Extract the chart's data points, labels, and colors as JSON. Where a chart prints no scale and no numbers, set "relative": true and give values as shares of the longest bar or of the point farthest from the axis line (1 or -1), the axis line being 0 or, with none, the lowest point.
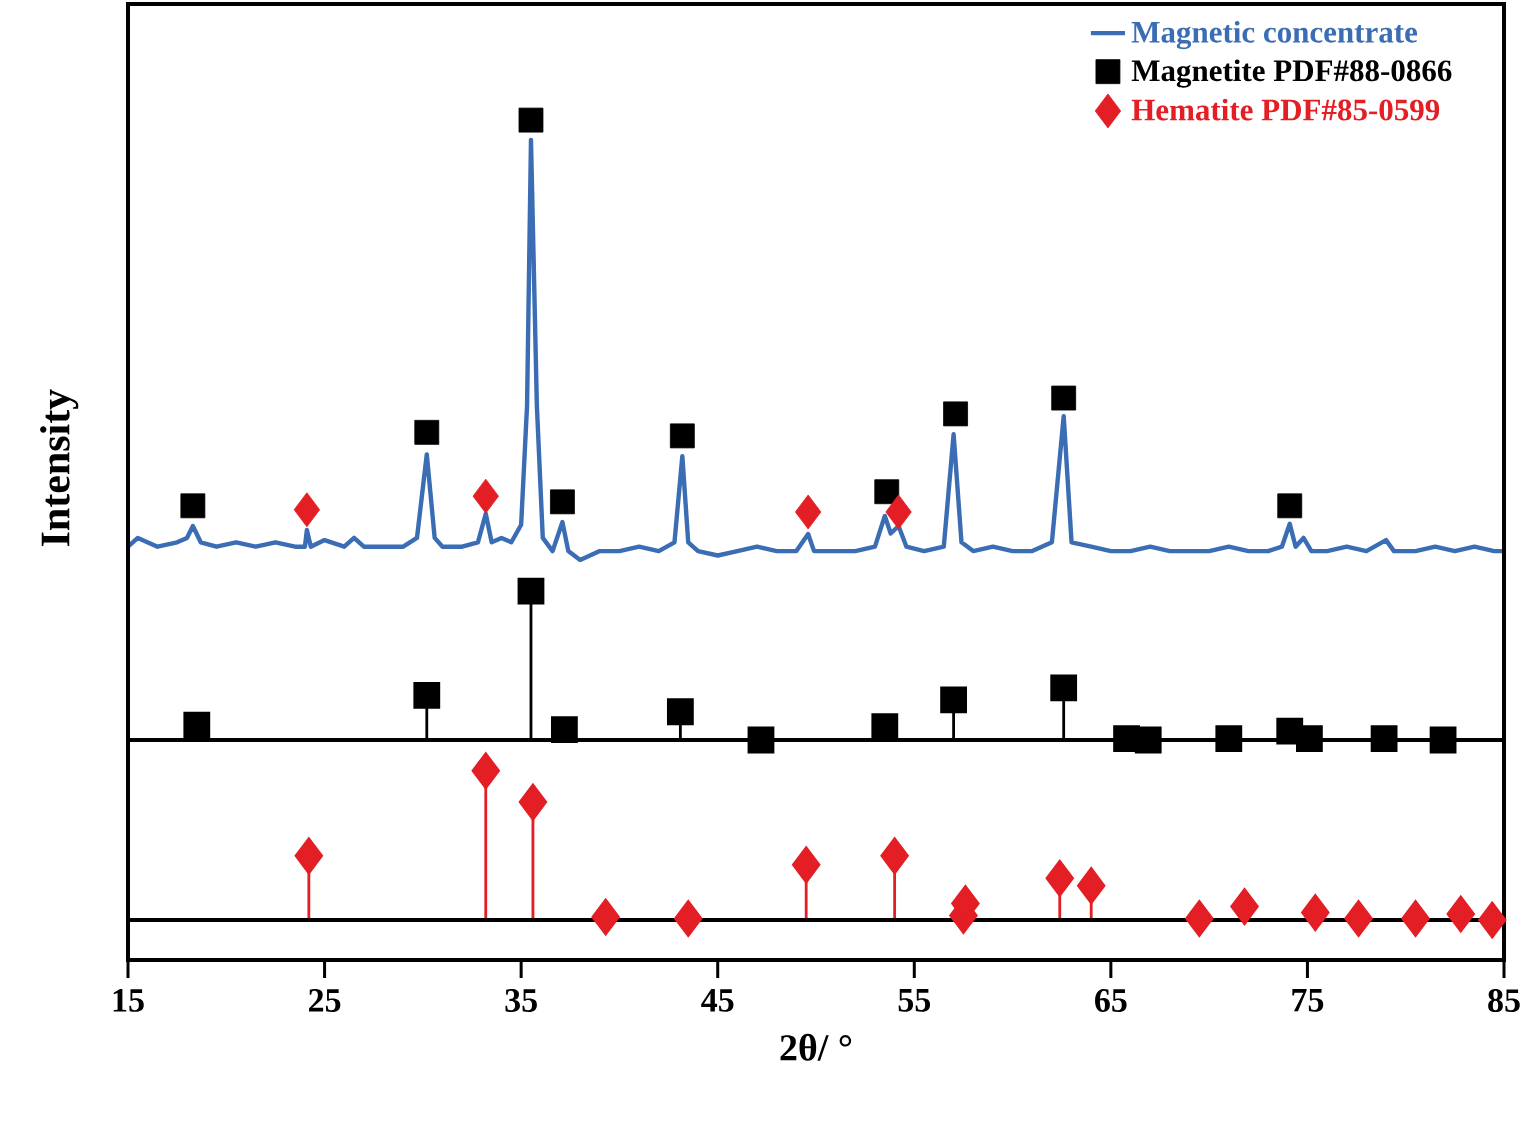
{
  "chart_data": [
    {
      "type": "line",
      "relative": true,
      "ylabel": "Intensity",
      "xlim": [
        15,
        85
      ],
      "tick_labels": false,
      "legend": "top right",
      "series": [
        {
          "name": "Magnetic concentrate",
          "type": "line",
          "color": "#3a6db4",
          "line_style": "solid",
          "marker": "none",
          "x": [
            15.0,
            15.5,
            16.5,
            17.5,
            18.0,
            18.3,
            18.7,
            19.5,
            20.5,
            21.5,
            22.5,
            23.5,
            24.0,
            24.1,
            24.3,
            25.0,
            26.0,
            26.5,
            27.0,
            28.0,
            29.0,
            29.7,
            30.2,
            30.6,
            31.0,
            32.0,
            32.8,
            33.2,
            33.5,
            34.0,
            34.5,
            35.0,
            35.3,
            35.5,
            35.8,
            36.1,
            36.6,
            37.1,
            37.4,
            38.0,
            39.0,
            40.0,
            41.0,
            42.0,
            42.8,
            43.2,
            43.5,
            44.0,
            45.0,
            46.0,
            47.0,
            48.0,
            49.0,
            49.6,
            49.9,
            51.0,
            52.0,
            53.0,
            53.5,
            53.8,
            54.2,
            54.6,
            55.5,
            56.5,
            57.0,
            57.4,
            58.0,
            59.0,
            60.0,
            61.0,
            62.0,
            62.6,
            63.0,
            64.0,
            65.0,
            66.0,
            67.0,
            68.0,
            69.0,
            70.0,
            71.0,
            72.0,
            73.0,
            73.7,
            74.1,
            74.4,
            74.8,
            75.2,
            76.0,
            77.0,
            78.0,
            79.0,
            79.4,
            80.5,
            81.5,
            82.5,
            83.5,
            84.5,
            85.0
          ],
          "values": [
            0.03,
            0.05,
            0.03,
            0.04,
            0.05,
            0.077,
            0.04,
            0.03,
            0.04,
            0.03,
            0.04,
            0.03,
            0.03,
            0.068,
            0.03,
            0.045,
            0.03,
            0.05,
            0.03,
            0.03,
            0.03,
            0.05,
            0.24,
            0.05,
            0.03,
            0.03,
            0.04,
            0.105,
            0.04,
            0.05,
            0.04,
            0.08,
            0.35,
            0.955,
            0.35,
            0.05,
            0.02,
            0.086,
            0.02,
            0.0,
            0.02,
            0.02,
            0.03,
            0.02,
            0.04,
            0.236,
            0.04,
            0.02,
            0.01,
            0.02,
            0.03,
            0.02,
            0.02,
            0.059,
            0.02,
            0.02,
            0.02,
            0.03,
            0.1,
            0.06,
            0.077,
            0.03,
            0.02,
            0.03,
            0.286,
            0.04,
            0.02,
            0.03,
            0.02,
            0.02,
            0.04,
            0.327,
            0.04,
            0.03,
            0.02,
            0.02,
            0.03,
            0.02,
            0.02,
            0.02,
            0.03,
            0.02,
            0.02,
            0.03,
            0.082,
            0.03,
            0.05,
            0.02,
            0.02,
            0.03,
            0.02,
            0.045,
            0.02,
            0.02,
            0.03,
            0.02,
            0.03,
            0.02,
            0.02
          ]
        },
        {
          "name": "Magnetite PDF#88-0866",
          "type": "scatter",
          "color": "#000000",
          "marker": "square",
          "x": [
            18.3,
            30.2,
            35.5,
            37.1,
            43.2,
            53.6,
            57.1,
            62.6,
            74.1
          ],
          "values": [
            0.123,
            0.29,
            1.0,
            0.132,
            0.282,
            0.155,
            0.332,
            0.368,
            0.123
          ]
        },
        {
          "name": "Hematite PDF#85-0599",
          "type": "scatter",
          "color": "#e31e24",
          "marker": "diamond",
          "x": [
            24.1,
            33.2,
            49.6,
            54.2
          ],
          "values": [
            0.114,
            0.145,
            0.109,
            0.109
          ]
        }
      ]
    },
    {
      "type": "lollipop",
      "relative": true,
      "xlim": [
        15,
        85
      ],
      "tick_labels": false,
      "series": [
        {
          "color": "#000000",
          "marker": "square",
          "x": [
            18.5,
            30.2,
            35.5,
            37.2,
            43.1,
            47.2,
            53.5,
            57.0,
            62.6,
            65.8,
            66.9,
            71.0,
            74.1,
            75.1,
            78.9,
            81.9
          ],
          "values": [
            0.1,
            0.3,
            1.0,
            0.07,
            0.19,
            0.0,
            0.09,
            0.27,
            0.35,
            0.01,
            0.0,
            0.01,
            0.06,
            0.01,
            0.01,
            0.0
          ]
        }
      ]
    },
    {
      "type": "lollipop",
      "relative": true,
      "xlim": [
        15,
        85
      ],
      "xticks": [
        15,
        25,
        35,
        45,
        55,
        65,
        75,
        85
      ],
      "tick_labels": "x",
      "xlabel": "2θ/ °",
      "series": [
        {
          "color": "#e31e24",
          "marker": "diamond",
          "x": [
            24.2,
            33.2,
            35.6,
            39.3,
            43.5,
            49.5,
            54.0,
            57.5,
            57.6,
            62.4,
            64.0,
            69.5,
            71.8,
            75.4,
            77.6,
            80.5,
            82.8,
            84.4
          ],
          "values": [
            0.43,
            1.0,
            0.79,
            0.02,
            0.01,
            0.37,
            0.43,
            0.03,
            0.11,
            0.28,
            0.23,
            0.01,
            0.09,
            0.05,
            0.01,
            0.01,
            0.04,
            0.0
          ]
        }
      ]
    }
  ]
}
